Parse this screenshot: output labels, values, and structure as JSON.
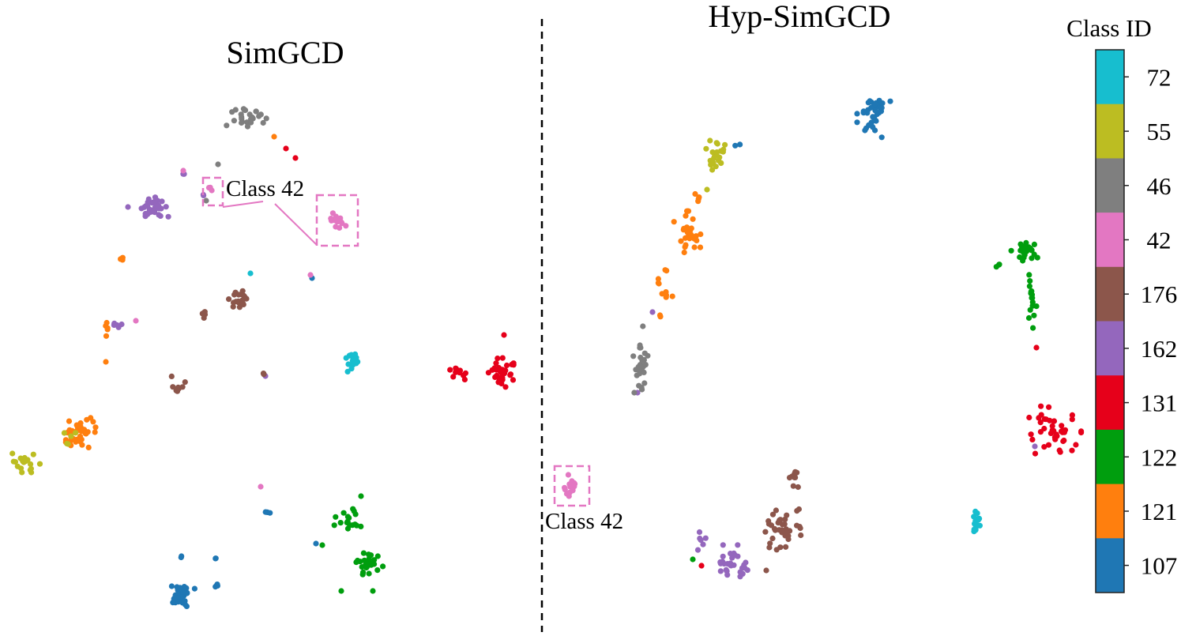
{
  "chart_data": [
    {
      "type": "scatter",
      "title": "SimGCD",
      "annotation": "Class 42",
      "series": [
        {
          "class": "107",
          "clusters": [
            [
              228,
              752,
              14,
              11,
              34
            ],
            [
              276,
              740,
              3,
              3,
              4
            ],
            [
              273,
              708,
              2,
              2,
              2
            ],
            [
              230,
              706,
              2,
              2,
              2
            ],
            [
              338,
              648,
              3,
              1,
              3
            ],
            [
              400,
              688,
              2,
              2,
              1
            ],
            [
              395,
              352,
              1,
              1,
              1
            ]
          ]
        },
        {
          "class": "121",
          "clusters": [
            [
              100,
              548,
              15,
              15,
              38
            ],
            [
              135,
              410,
              4,
              12,
              5
            ],
            [
              154,
              327,
              2,
              3,
              3
            ],
            [
              134,
              458,
              1,
              1,
              1
            ],
            [
              347,
              173,
              1,
              1,
              1
            ]
          ]
        },
        {
          "class": "122",
          "clusters": [
            [
              440,
              658,
              12,
              12,
              18
            ],
            [
              468,
              713,
              15,
              12,
              26
            ],
            [
              408,
              690,
              2,
              2,
              1
            ],
            [
              432,
              748,
              1,
              1,
              1
            ],
            [
              472,
              748,
              1,
              1,
              1
            ],
            [
              457,
              628,
              1,
              1,
              1
            ]
          ]
        },
        {
          "class": "131",
          "clusters": [
            [
              638,
              473,
              14,
              16,
              34
            ],
            [
              580,
              472,
              10,
              7,
              12
            ],
            [
              362,
              188,
              1,
              1,
              1
            ],
            [
              374,
              200,
              1,
              1,
              1
            ],
            [
              638,
              424,
              1,
              1,
              1
            ]
          ]
        },
        {
          "class": "162",
          "clusters": [
            [
              196,
              265,
              14,
              13,
              34
            ],
            [
              148,
              411,
              5,
              3,
              5
            ],
            [
              232,
              220,
              1,
              1,
              2
            ],
            [
              256,
              246,
              2,
              2,
              2
            ],
            [
              336,
              476,
              1,
              1,
              1
            ],
            [
              162,
              262,
              1,
              1,
              1
            ]
          ]
        },
        {
          "class": "176",
          "clusters": [
            [
              298,
              381,
              10,
              11,
              18
            ],
            [
              261,
              398,
              4,
              5,
              4
            ],
            [
              226,
              487,
              12,
              11,
              9
            ],
            [
              333,
              472,
              2,
              2,
              3
            ]
          ]
        },
        {
          "class": "42",
          "clusters": [
            [
              427,
              281,
              9,
              8,
              14
            ],
            [
              267,
              239,
              2,
              2,
              3
            ],
            [
              330,
              616,
              1,
              1,
              1
            ],
            [
              172,
              406,
              1,
              1,
              1
            ],
            [
              393,
              348,
              1,
              1,
              1
            ],
            [
              232,
              216,
              1,
              1,
              1
            ]
          ]
        },
        {
          "class": "46",
          "clusters": [
            [
              312,
              148,
              18,
              11,
              26
            ],
            [
              276,
              208,
              1,
              1,
              1
            ],
            [
              261,
              254,
              1,
              1,
              1
            ]
          ]
        },
        {
          "class": "55",
          "clusters": [
            [
              29,
              586,
              16,
              10,
              18
            ],
            [
              88,
              555,
              15,
              8,
              5
            ]
          ]
        },
        {
          "class": "72",
          "clusters": [
            [
              446,
              455,
              8,
              11,
              18
            ],
            [
              317,
              346,
              1,
              1,
              1
            ]
          ]
        }
      ]
    },
    {
      "type": "scatter",
      "title": "Hyp-SimGCD",
      "annotation": "Class 42",
      "series": [
        {
          "class": "107",
          "clusters": [
            [
              1106,
              143,
              15,
              22,
              38
            ],
            [
              931,
              185,
              4,
              3,
              2
            ]
          ]
        },
        {
          "class": "121",
          "clusters": [
            [
              870,
              298,
              12,
              22,
              28
            ],
            [
              840,
              360,
              8,
              26,
              10
            ],
            [
              880,
              248,
              8,
              14,
              4
            ],
            [
              835,
              400,
              2,
              2,
              2
            ]
          ]
        },
        {
          "class": "122",
          "clusters": [
            [
              1298,
              316,
              14,
              10,
              26
            ],
            [
              1305,
              380,
              5,
              40,
              16
            ],
            [
              1263,
              335,
              3,
              2,
              3
            ],
            [
              877,
              708,
              1,
              1,
              1
            ]
          ]
        },
        {
          "class": "131",
          "clusters": [
            [
              1335,
              545,
              24,
              22,
              42
            ],
            [
              1312,
              440,
              1,
              1,
              1
            ],
            [
              888,
              716,
              1,
              1,
              1
            ]
          ]
        },
        {
          "class": "162",
          "clusters": [
            [
              928,
              715,
              18,
              18,
              30
            ],
            [
              888,
              685,
              5,
              12,
              6
            ],
            [
              807,
              497,
              1,
              1,
              1
            ],
            [
              826,
              395,
              1,
              1,
              1
            ],
            [
              1310,
              565,
              1,
              1,
              1
            ]
          ]
        },
        {
          "class": "176",
          "clusters": [
            [
              993,
              668,
              22,
              22,
              36
            ],
            [
              1005,
              605,
              6,
              15,
              10
            ],
            [
              970,
              722,
              1,
              1,
              1
            ]
          ]
        },
        {
          "class": "42",
          "clusters": [
            [
              723,
              615,
              6,
              10,
              16
            ]
          ]
        },
        {
          "class": "46",
          "clusters": [
            [
              810,
              455,
              8,
              30,
              30
            ]
          ]
        },
        {
          "class": "55",
          "clusters": [
            [
              905,
              194,
              10,
              15,
              24
            ],
            [
              895,
              240,
              1,
              1,
              1
            ]
          ]
        },
        {
          "class": "72",
          "clusters": [
            [
              1236,
              660,
              5,
              9,
              14
            ]
          ]
        }
      ]
    }
  ],
  "colorbar": {
    "title": "Class ID",
    "labels": [
      "72",
      "55",
      "46",
      "42",
      "176",
      "162",
      "131",
      "122",
      "121",
      "107"
    ]
  },
  "colors": {
    "72": "#17becf",
    "55": "#bcbd22",
    "46": "#7f7f7f",
    "42": "#e377c2",
    "176": "#8c564b",
    "162": "#9467bd",
    "131": "#e6001a",
    "122": "#009e0e",
    "121": "#ff7f0e",
    "107": "#1f77b4"
  }
}
